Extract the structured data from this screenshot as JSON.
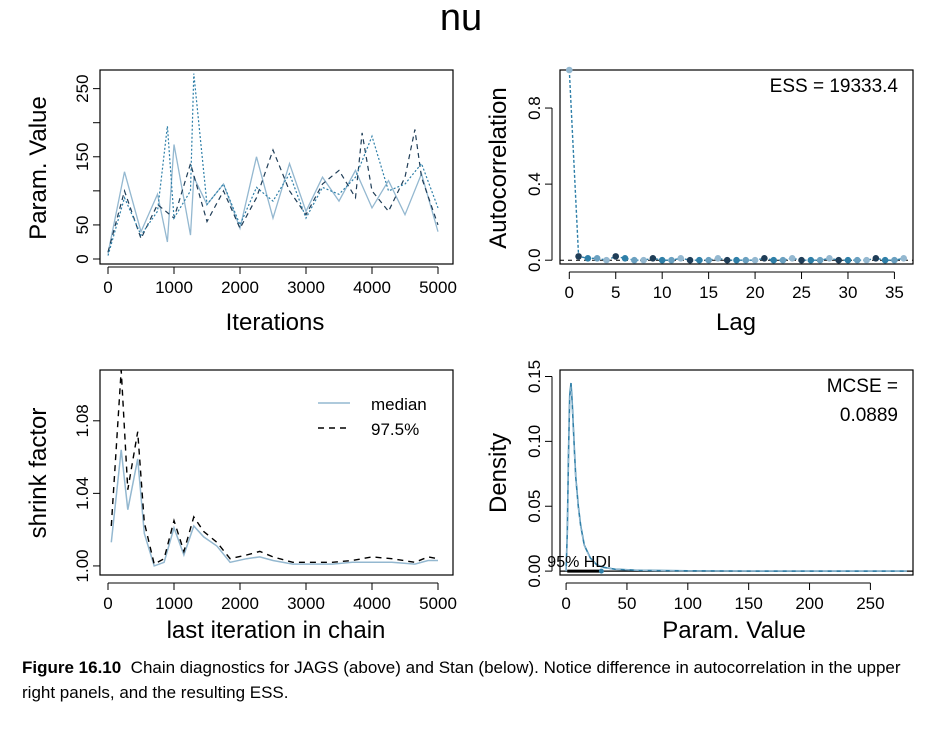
{
  "figure_title": "nu",
  "caption": {
    "label": "Figure 16.10",
    "text": "Chain diagnostics for JAGS (above) and Stan (below). Notice difference in autocorrelation in the upper right panels, and the resulting ESS."
  },
  "colors": {
    "chain1": "#94b8d0",
    "chain2": "#1f3d57",
    "chain3": "#2e7fa8",
    "chain4": "#6aa0c0",
    "median_line": "#94b8d0",
    "percentile_line": "#000000"
  },
  "chart_data": [
    {
      "id": "trace",
      "type": "line",
      "title": "",
      "xlabel": "Iterations",
      "ylabel": "Param. Value",
      "xlim": [
        0,
        5000
      ],
      "ylim": [
        0,
        270
      ],
      "xticks": [
        0,
        1000,
        2000,
        3000,
        4000,
        5000
      ],
      "yticks": [
        0,
        50,
        150,
        250
      ],
      "ytick_minor": [
        100,
        200
      ],
      "series": [
        {
          "style": "solid",
          "x": [
            0,
            250,
            500,
            750,
            900,
            1000,
            1250,
            1300,
            1500,
            1750,
            2000,
            2250,
            2500,
            2750,
            3000,
            3250,
            3500,
            3750,
            4000,
            4250,
            4500,
            4750,
            5000
          ],
          "values": [
            8,
            128,
            40,
            95,
            25,
            168,
            35,
            120,
            80,
            110,
            45,
            150,
            60,
            140,
            70,
            120,
            85,
            130,
            75,
            115,
            65,
            125,
            40
          ]
        },
        {
          "style": "dashed",
          "x": [
            0,
            250,
            500,
            750,
            1000,
            1250,
            1500,
            1750,
            2000,
            2250,
            2500,
            2750,
            3000,
            3250,
            3500,
            3750,
            3850,
            4000,
            4250,
            4500,
            4650,
            4750,
            5000
          ],
          "values": [
            10,
            100,
            30,
            80,
            60,
            140,
            55,
            100,
            45,
            90,
            160,
            100,
            65,
            110,
            130,
            90,
            185,
            100,
            70,
            120,
            190,
            120,
            50
          ]
        },
        {
          "style": "dotted",
          "x": [
            0,
            250,
            500,
            750,
            900,
            1000,
            1250,
            1300,
            1500,
            1750,
            2000,
            2250,
            2500,
            2750,
            3000,
            3250,
            3500,
            3750,
            4000,
            4250,
            4500,
            4750,
            5000
          ],
          "values": [
            5,
            90,
            35,
            70,
            195,
            60,
            100,
            272,
            80,
            110,
            50,
            105,
            85,
            125,
            60,
            105,
            95,
            120,
            180,
            100,
            110,
            140,
            75
          ]
        }
      ]
    },
    {
      "id": "autocorrelation",
      "type": "scatter",
      "xlabel": "Lag",
      "ylabel": "Autocorrelation",
      "xlim": [
        -1,
        37
      ],
      "ylim": [
        -0.02,
        1.0
      ],
      "xticks": [
        0,
        5,
        10,
        15,
        20,
        25,
        30,
        35
      ],
      "yticks": [
        0.0,
        0.4,
        0.8
      ],
      "annotation": "ESS = 19333.4",
      "x": [
        0,
        1,
        2,
        3,
        4,
        5,
        6,
        7,
        8,
        9,
        10,
        11,
        12,
        13,
        14,
        15,
        16,
        17,
        18,
        19,
        20,
        21,
        22,
        23,
        24,
        25,
        26,
        27,
        28,
        29,
        30,
        31,
        32,
        33,
        34,
        35,
        36
      ],
      "values": [
        1.0,
        0.02,
        0.01,
        0.01,
        0.0,
        0.02,
        0.01,
        0.0,
        0.0,
        0.01,
        0.0,
        0.0,
        0.01,
        0.0,
        0.0,
        0.0,
        0.01,
        0.0,
        0.0,
        0.0,
        0.0,
        0.01,
        0.0,
        0.0,
        0.01,
        0.0,
        0.0,
        0.0,
        0.01,
        0.0,
        0.0,
        0.0,
        0.0,
        0.01,
        0.0,
        0.0,
        0.01
      ]
    },
    {
      "id": "shrink",
      "type": "line",
      "xlabel": "last iteration in chain",
      "ylabel": "shrink factor",
      "xlim": [
        0,
        5000
      ],
      "ylim": [
        0.995,
        1.108
      ],
      "xticks": [
        0,
        1000,
        2000,
        3000,
        4000,
        5000
      ],
      "yticks": [
        1.0,
        1.04,
        1.08
      ],
      "legend_position": "top-right",
      "series": [
        {
          "name": "median",
          "style": "solid",
          "x": [
            50,
            200,
            300,
            450,
            550,
            700,
            850,
            1000,
            1150,
            1300,
            1450,
            1650,
            1850,
            2100,
            2300,
            2500,
            2800,
            3100,
            3400,
            3700,
            4000,
            4300,
            4650,
            4850,
            5000
          ],
          "values": [
            1.013,
            1.064,
            1.031,
            1.059,
            1.018,
            1.0,
            1.002,
            1.021,
            1.006,
            1.022,
            1.016,
            1.011,
            1.002,
            1.004,
            1.005,
            1.003,
            1.001,
            1.001,
            1.001,
            1.002,
            1.002,
            1.002,
            1.001,
            1.003,
            1.003
          ]
        },
        {
          "name": "97.5%",
          "style": "dashed",
          "x": [
            50,
            200,
            300,
            450,
            550,
            700,
            850,
            1000,
            1150,
            1300,
            1450,
            1650,
            1850,
            2100,
            2300,
            2500,
            2800,
            3100,
            3400,
            3700,
            4000,
            4300,
            4650,
            4850,
            5000
          ],
          "values": [
            1.022,
            1.108,
            1.042,
            1.074,
            1.024,
            1.001,
            1.004,
            1.025,
            1.008,
            1.027,
            1.019,
            1.013,
            1.004,
            1.006,
            1.008,
            1.005,
            1.002,
            1.002,
            1.002,
            1.003,
            1.005,
            1.004,
            1.002,
            1.005,
            1.004
          ]
        }
      ]
    },
    {
      "id": "density",
      "type": "line",
      "xlabel": "Param. Value",
      "ylabel": "Density",
      "xlim": [
        -5,
        285
      ],
      "ylim": [
        -0.003,
        0.155
      ],
      "xticks": [
        0,
        50,
        100,
        150,
        200,
        250
      ],
      "yticks": [
        0.0,
        0.05,
        0.1,
        0.15
      ],
      "annotation": [
        "MCSE =",
        "0.0889"
      ],
      "hdi_label": "95% HDI",
      "hdi": [
        1,
        29
      ],
      "x": [
        0,
        1,
        2,
        3,
        4,
        5,
        6,
        7,
        8,
        10,
        12,
        15,
        20,
        25,
        30,
        40,
        60,
        100,
        150,
        200,
        280
      ],
      "values": [
        0.0,
        0.03,
        0.09,
        0.135,
        0.145,
        0.13,
        0.11,
        0.09,
        0.072,
        0.05,
        0.035,
        0.02,
        0.01,
        0.005,
        0.003,
        0.0015,
        0.0006,
        0.0002,
        0.0001,
        0.0,
        0.0
      ]
    }
  ]
}
